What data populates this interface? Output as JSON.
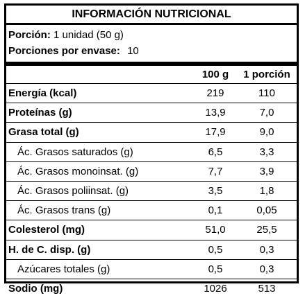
{
  "title": "INFORMACIÓN NUTRICIONAL",
  "serving": {
    "label": "Porción:",
    "value": "1 unidad (50 g)"
  },
  "servings_per_container": {
    "label": "Porciones por envase:",
    "value": "10"
  },
  "columns": {
    "per_100g": "100 g",
    "per_serving": "1 porción"
  },
  "rows": [
    {
      "name": "Energía (kcal)",
      "v100": "219",
      "vserv": "110"
    },
    {
      "name": "Proteínas (g)",
      "v100": "13,9",
      "vserv": "7,0"
    },
    {
      "name": "Grasa total (g)",
      "v100": "17,9",
      "vserv": "9,0"
    },
    {
      "name": "Ác. Grasos saturados (g)",
      "v100": "6,5",
      "vserv": "3,3"
    },
    {
      "name": "Ác. Grasos monoinsat. (g)",
      "v100": "7,7",
      "vserv": "3,9"
    },
    {
      "name": "Ác. Grasos poliinsat. (g)",
      "v100": "3,5",
      "vserv": "1,8"
    },
    {
      "name": "Ác. Grasos trans (g)",
      "v100": "0,1",
      "vserv": "0,05"
    },
    {
      "name": "Colesterol (mg)",
      "v100": "51,0",
      "vserv": "25,5"
    },
    {
      "name": "H. de C. disp. (g)",
      "v100": "0,5",
      "vserv": "0,3"
    },
    {
      "name": "Azúcares totales (g)",
      "v100": "0,5",
      "vserv": "0,3"
    },
    {
      "name": "Sodio (mg)",
      "v100": "1026",
      "vserv": "513"
    }
  ]
}
